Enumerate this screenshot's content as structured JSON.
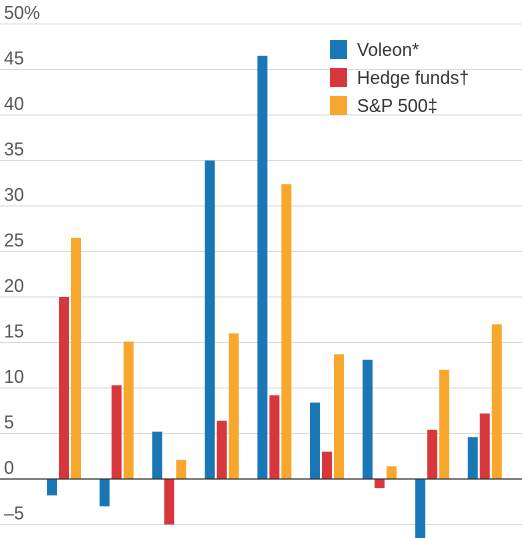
{
  "chart_data": {
    "type": "bar",
    "categories": [
      "",
      "",
      "",
      "",
      "",
      "",
      "",
      "",
      ""
    ],
    "series": [
      {
        "name": "Voleon*",
        "color": "#1a77b5",
        "values": [
          -1.8,
          -3.0,
          5.2,
          35.0,
          46.5,
          8.4,
          13.1,
          -6.5,
          4.6
        ]
      },
      {
        "name": "Hedge funds†",
        "color": "#d7373c",
        "values": [
          20.0,
          10.3,
          -5.0,
          6.4,
          9.2,
          3.0,
          -1.0,
          5.4,
          7.2
        ]
      },
      {
        "name": "S&P 500‡",
        "color": "#f6a72c",
        "values": [
          26.5,
          15.1,
          2.1,
          16.0,
          32.4,
          13.7,
          1.4,
          12.0,
          17.0
        ]
      }
    ],
    "y_ticks": [
      {
        "value": 50,
        "label": "50%"
      },
      {
        "value": 45,
        "label": "45"
      },
      {
        "value": 40,
        "label": "40"
      },
      {
        "value": 35,
        "label": "35"
      },
      {
        "value": 30,
        "label": "30"
      },
      {
        "value": 25,
        "label": "25"
      },
      {
        "value": 20,
        "label": "20"
      },
      {
        "value": 15,
        "label": "15"
      },
      {
        "value": 10,
        "label": "10"
      },
      {
        "value": 5,
        "label": "5"
      },
      {
        "value": 0,
        "label": "0"
      },
      {
        "value": -5,
        "label": "–5"
      }
    ],
    "ylim": [
      -6.5,
      52
    ],
    "grid": true,
    "legend_position": "top-right",
    "title": "",
    "xlabel": "",
    "ylabel": ""
  }
}
